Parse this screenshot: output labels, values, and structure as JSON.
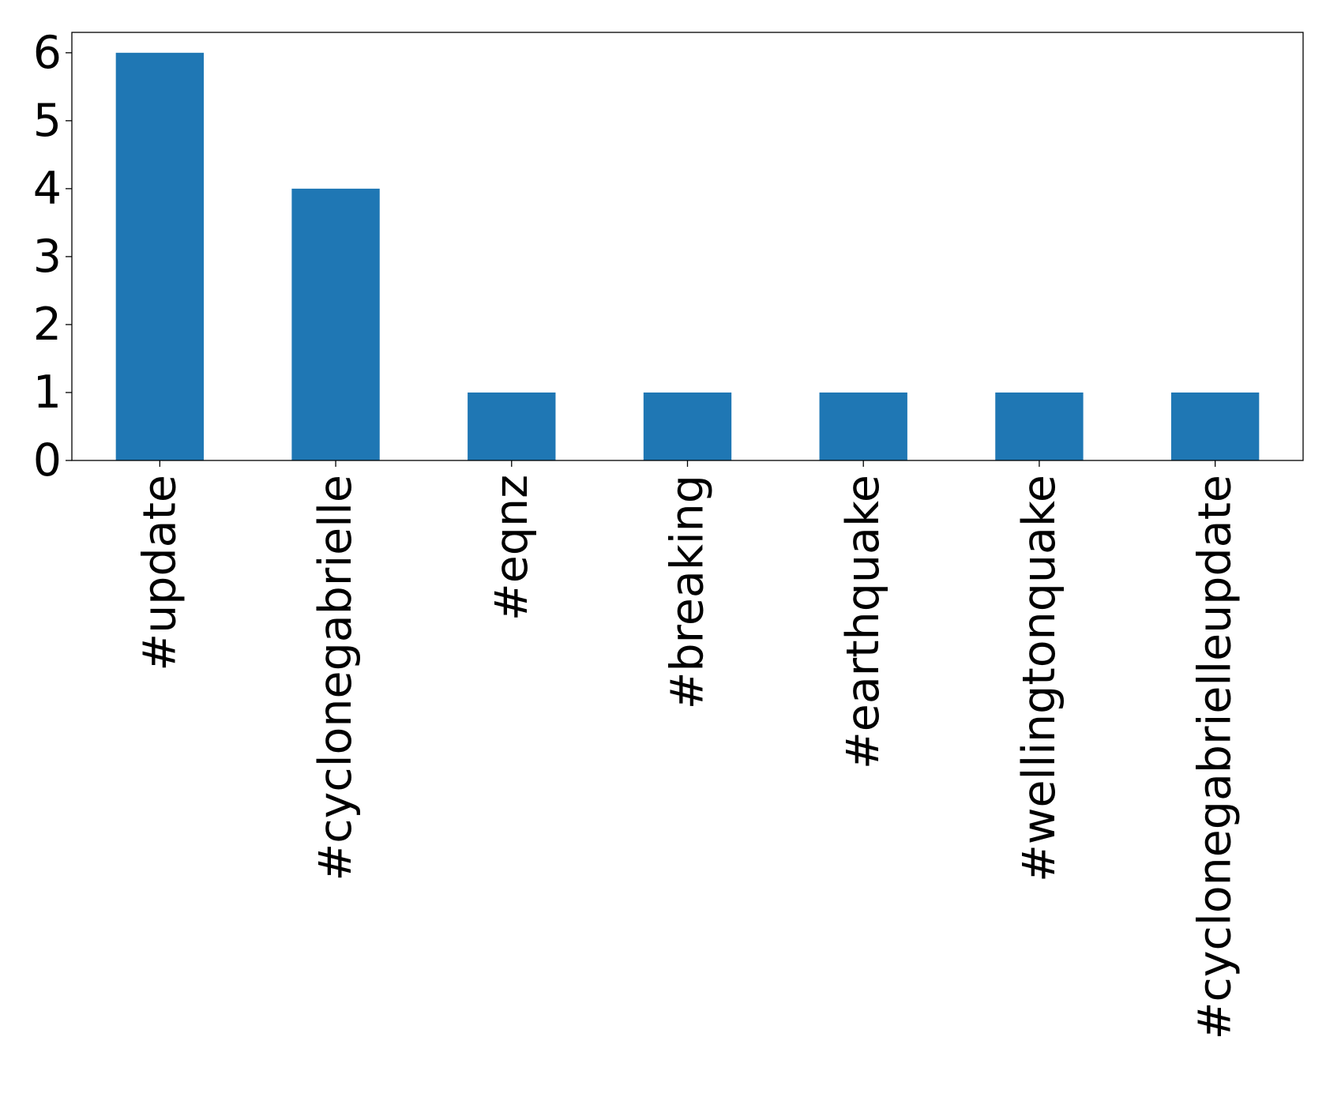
{
  "chart_data": {
    "type": "bar",
    "title": "",
    "xlabel": "",
    "ylabel": "",
    "categories": [
      "#update",
      "#cyclonegabrielle",
      "#eqnz",
      "#breaking",
      "#earthquake",
      "#wellingtonquake",
      "#cyclonegabrielleupdate"
    ],
    "values": [
      6,
      4,
      1,
      1,
      1,
      1,
      1
    ],
    "ylim": [
      0,
      6.3
    ],
    "yticks": [
      0,
      1,
      2,
      3,
      4,
      5,
      6
    ],
    "x_tick_rotation": "vertical",
    "bar_color": "#1f77b4",
    "grid": false,
    "legend": "none"
  }
}
